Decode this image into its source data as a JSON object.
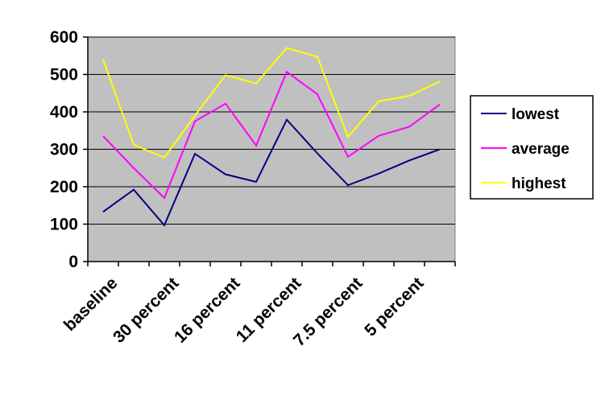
{
  "chart_data": {
    "type": "line",
    "title": "",
    "xlabel": "",
    "ylabel": "",
    "ylim": [
      0,
      600
    ],
    "yticks": [
      0,
      100,
      200,
      300,
      400,
      500,
      600
    ],
    "x_count": 12,
    "x_tick_labels": [
      {
        "index": 1,
        "label": "baseline"
      },
      {
        "index": 3,
        "label": "30 percent"
      },
      {
        "index": 5,
        "label": "16 percent"
      },
      {
        "index": 7,
        "label": "11 percent"
      },
      {
        "index": 9,
        "label": "7.5 percent"
      },
      {
        "index": 11,
        "label": "5 percent"
      }
    ],
    "grid": "horizontal",
    "plot_background": "#c0c0c0",
    "legend_position": "right",
    "series": [
      {
        "name": "lowest",
        "color": "#000080",
        "values": [
          133,
          192,
          97,
          288,
          233,
          213,
          379,
          289,
          204,
          235,
          270,
          300
        ]
      },
      {
        "name": "average",
        "color": "#ff00ff",
        "values": [
          335,
          250,
          170,
          375,
          422,
          310,
          507,
          447,
          280,
          336,
          360,
          420
        ]
      },
      {
        "name": "highest",
        "color": "#ffff00",
        "values": [
          540,
          312,
          278,
          390,
          498,
          476,
          571,
          547,
          333,
          428,
          443,
          481
        ]
      }
    ]
  }
}
